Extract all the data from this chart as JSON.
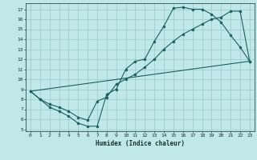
{
  "xlabel": "Humidex (Indice chaleur)",
  "bg_color": "#c0e8e8",
  "line_color": "#1a6060",
  "grid_color": "#98c8c8",
  "xlim": [
    -0.5,
    23.5
  ],
  "ylim": [
    4.8,
    17.6
  ],
  "xticks": [
    0,
    1,
    2,
    3,
    4,
    5,
    6,
    7,
    8,
    9,
    10,
    11,
    12,
    13,
    14,
    15,
    16,
    17,
    18,
    19,
    20,
    21,
    22,
    23
  ],
  "yticks": [
    5,
    6,
    7,
    8,
    9,
    10,
    11,
    12,
    13,
    14,
    15,
    16,
    17
  ],
  "line1_x": [
    0,
    1,
    2,
    3,
    4,
    5,
    6,
    7,
    8,
    9,
    10,
    11,
    12,
    13,
    14,
    15,
    16,
    17,
    18,
    19,
    20,
    21,
    22,
    23
  ],
  "line1_y": [
    8.8,
    8.0,
    7.2,
    6.8,
    6.3,
    5.6,
    5.3,
    5.3,
    8.5,
    9.0,
    11.0,
    11.8,
    12.0,
    13.8,
    15.3,
    17.1,
    17.2,
    17.0,
    17.0,
    16.5,
    15.7,
    14.4,
    13.2,
    11.8
  ],
  "line2_x": [
    0,
    1,
    2,
    3,
    4,
    5,
    6,
    7,
    8,
    9,
    10,
    11,
    12,
    13,
    14,
    15,
    16,
    17,
    18,
    19,
    20,
    21,
    22,
    23
  ],
  "line2_y": [
    8.8,
    8.0,
    7.5,
    7.2,
    6.8,
    6.2,
    5.9,
    7.8,
    8.2,
    9.5,
    10.0,
    10.5,
    11.2,
    12.0,
    13.0,
    13.8,
    14.5,
    15.0,
    15.5,
    16.0,
    16.2,
    16.8,
    16.8,
    11.8
  ],
  "line3_x": [
    0,
    23
  ],
  "line3_y": [
    8.8,
    11.8
  ],
  "marker_size": 2.0,
  "linewidth": 0.8
}
